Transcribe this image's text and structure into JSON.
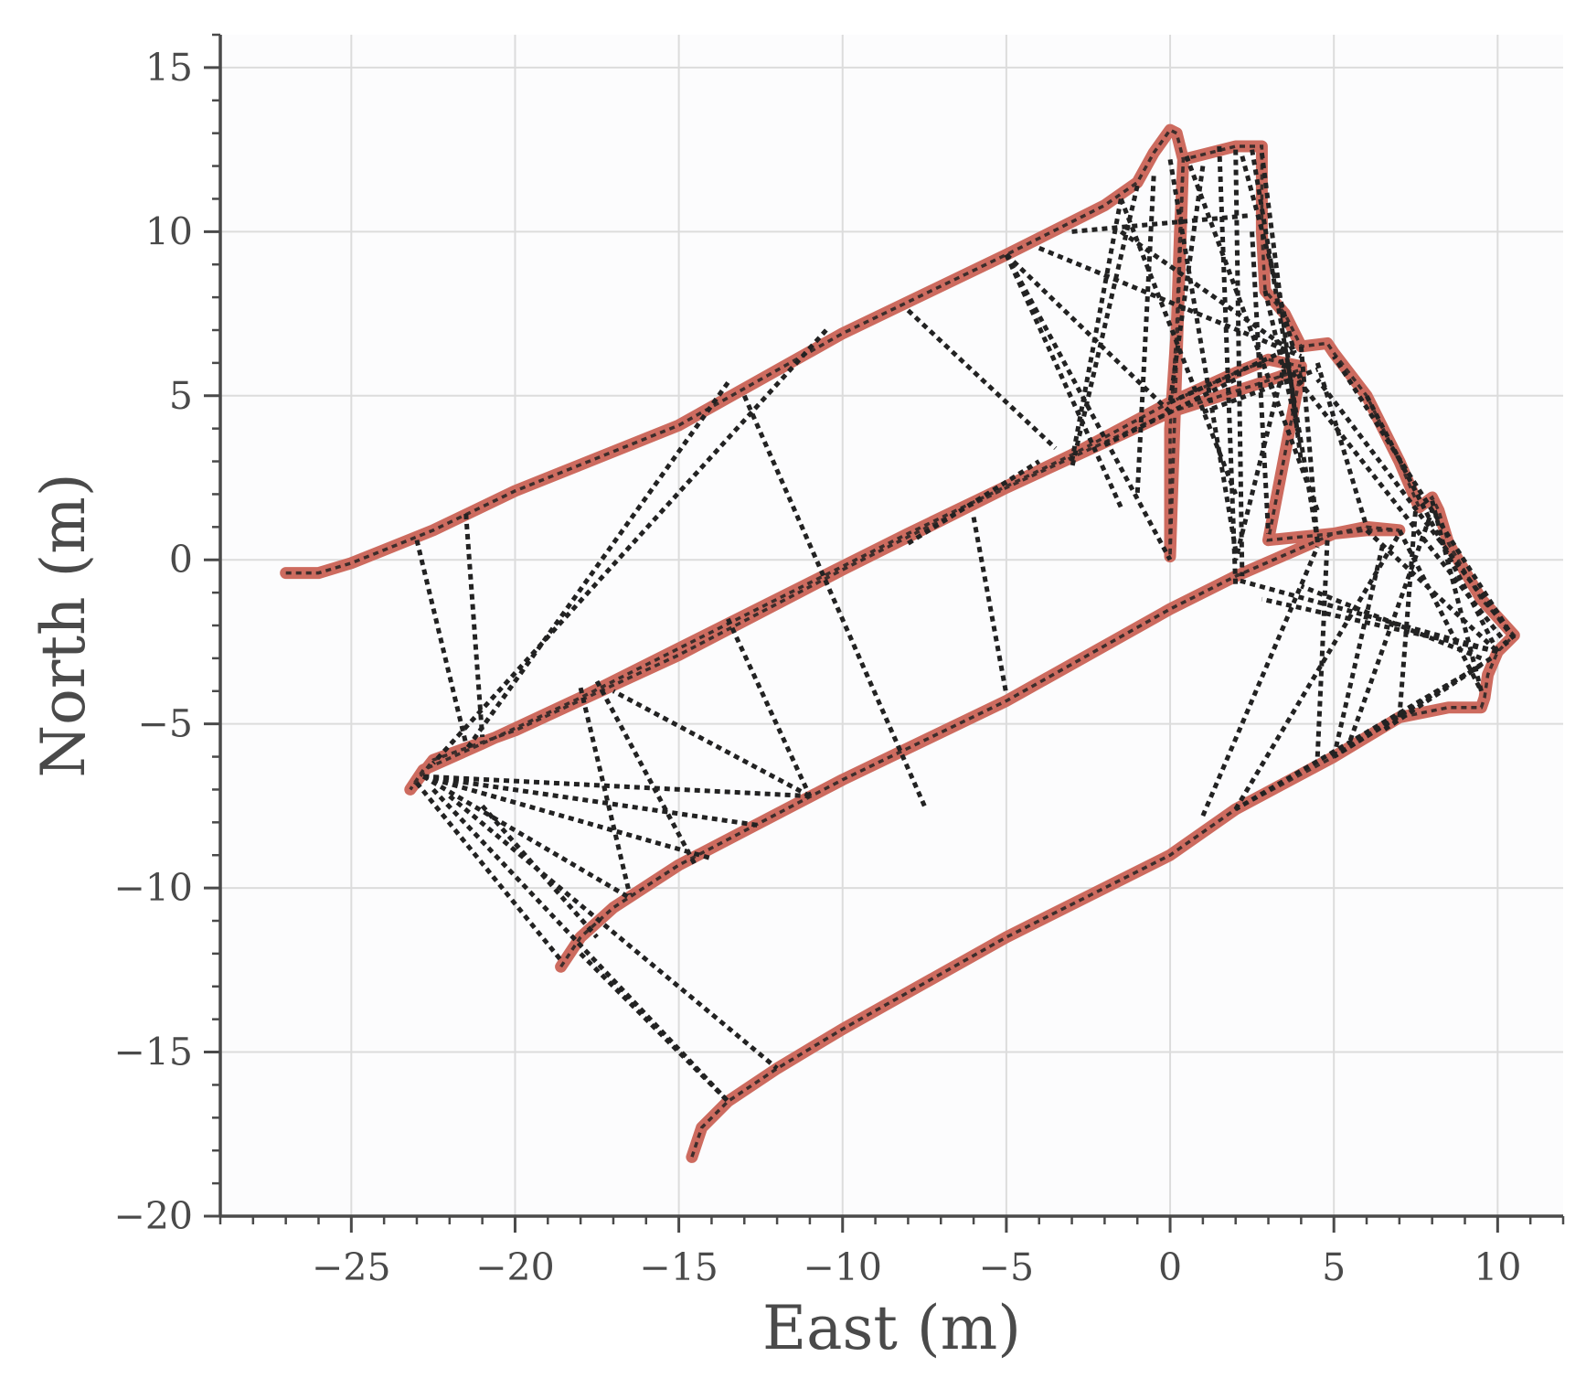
{
  "chart_data": {
    "type": "line",
    "title": "",
    "xlabel": "East (m)",
    "ylabel": "North (m)",
    "xlim": [
      -29,
      12
    ],
    "ylim": [
      -20,
      16
    ],
    "xticks": [
      -25,
      -20,
      -15,
      -10,
      -5,
      0,
      5,
      10
    ],
    "yticks": [
      -20,
      -15,
      -10,
      -5,
      0,
      5,
      10,
      15
    ],
    "xtick_labels": [
      "−25",
      "−20",
      "−15",
      "−10",
      "−5",
      "0",
      "5",
      "10"
    ],
    "ytick_labels": [
      "−20",
      "−15",
      "−10",
      "−5",
      "0",
      "5",
      "10",
      "15"
    ],
    "grid": true,
    "legend": "none",
    "colors": {
      "background": "#fcfcfd",
      "trajectory": "#cd6b5f",
      "connections": "#222222",
      "grid": "#dcdcdc",
      "axis": "#4a4a4a"
    },
    "series": [
      {
        "style": "solid-thick",
        "points": [
          [
            -27.0,
            -0.4
          ],
          [
            -26.0,
            -0.4
          ],
          [
            -25.0,
            -0.1
          ],
          [
            -24.0,
            0.3
          ],
          [
            -22.5,
            0.9
          ],
          [
            -20.0,
            2.1
          ],
          [
            -15.0,
            4.1
          ],
          [
            -10.0,
            6.9
          ],
          [
            -5.0,
            9.3
          ],
          [
            -2.0,
            10.8
          ],
          [
            -1.0,
            11.5
          ],
          [
            -0.5,
            12.4
          ],
          [
            0.0,
            13.1
          ],
          [
            0.2,
            13.0
          ],
          [
            0.4,
            12.2
          ],
          [
            0.3,
            10.0
          ],
          [
            0.2,
            7.0
          ],
          [
            0.0,
            4.0
          ],
          [
            0.0,
            0.1
          ],
          [
            0.4,
            12.2
          ],
          [
            2.0,
            12.6
          ],
          [
            2.8,
            12.6
          ],
          [
            2.8,
            10.0
          ],
          [
            2.9,
            8.2
          ],
          [
            3.5,
            7.5
          ],
          [
            4.0,
            6.5
          ],
          [
            4.8,
            6.6
          ],
          [
            5.0,
            6.3
          ],
          [
            6.0,
            5.0
          ],
          [
            7.0,
            3.0
          ],
          [
            7.6,
            1.6
          ],
          [
            8.0,
            1.9
          ],
          [
            8.2,
            1.5
          ],
          [
            8.5,
            0.5
          ],
          [
            9.5,
            -1.2
          ],
          [
            10.5,
            -2.3
          ],
          [
            10.0,
            -2.8
          ],
          [
            9.7,
            -3.5
          ],
          [
            9.6,
            -4.2
          ],
          [
            9.5,
            -4.5
          ],
          [
            8.5,
            -4.5
          ],
          [
            7.0,
            -4.8
          ],
          [
            5.0,
            -6.0
          ],
          [
            2.0,
            -7.6
          ],
          [
            0.0,
            -9.0
          ],
          [
            -5.0,
            -11.5
          ],
          [
            -10.0,
            -14.3
          ],
          [
            -12.0,
            -15.5
          ],
          [
            -13.5,
            -16.5
          ],
          [
            -14.3,
            -17.3
          ],
          [
            -14.6,
            -18.2
          ]
        ]
      },
      {
        "style": "solid-thick",
        "points": [
          [
            -18.6,
            -12.4
          ],
          [
            -18.0,
            -11.5
          ],
          [
            -17.0,
            -10.6
          ],
          [
            -15.0,
            -9.3
          ],
          [
            -10.0,
            -6.7
          ],
          [
            -5.0,
            -4.3
          ],
          [
            0.0,
            -1.5
          ],
          [
            2.0,
            -0.5
          ],
          [
            5.0,
            0.8
          ],
          [
            6.0,
            1.0
          ],
          [
            7.0,
            0.9
          ],
          [
            6.0,
            0.9
          ],
          [
            3.0,
            0.6
          ],
          [
            4.0,
            5.8
          ],
          [
            2.5,
            5.3
          ],
          [
            0.0,
            4.5
          ],
          [
            -5.0,
            2.2
          ],
          [
            -10.0,
            -0.3
          ],
          [
            -15.0,
            -2.9
          ],
          [
            -20.0,
            -5.2
          ],
          [
            -22.5,
            -6.1
          ],
          [
            -23.2,
            -7.0
          ],
          [
            -22.8,
            -6.4
          ],
          [
            -21.0,
            -5.6
          ],
          [
            -18.0,
            -4.2
          ],
          [
            -13.0,
            -1.7
          ],
          [
            -8.0,
            0.8
          ],
          [
            -3.0,
            3.2
          ],
          [
            0.0,
            4.8
          ],
          [
            2.0,
            5.7
          ],
          [
            3.0,
            6.1
          ],
          [
            4.0,
            5.9
          ]
        ]
      }
    ],
    "connections": [
      [
        [
          -23.0,
          0.6
        ],
        [
          -21.5,
          -5.6
        ]
      ],
      [
        [
          -21.5,
          1.4
        ],
        [
          -21.0,
          -5.4
        ]
      ],
      [
        [
          -13.5,
          5.4
        ],
        [
          -21.5,
          -5.8
        ]
      ],
      [
        [
          -10.5,
          7.0
        ],
        [
          -22.5,
          -6.2
        ]
      ],
      [
        [
          -13.0,
          5.0
        ],
        [
          -7.5,
          -7.5
        ]
      ],
      [
        [
          -8.0,
          7.6
        ],
        [
          -3.5,
          3.4
        ]
      ],
      [
        [
          -3.0,
          3.0
        ],
        [
          -1.5,
          11.0
        ]
      ],
      [
        [
          -5.0,
          9.3
        ],
        [
          0.0,
          0.0
        ]
      ],
      [
        [
          -5.0,
          9.3
        ],
        [
          -1.5,
          1.6
        ]
      ],
      [
        [
          -5.0,
          9.3
        ],
        [
          0.0,
          4.5
        ]
      ],
      [
        [
          -4.0,
          9.5
        ],
        [
          4.0,
          6.2
        ]
      ],
      [
        [
          -3.0,
          10.0
        ],
        [
          2.5,
          10.5
        ]
      ],
      [
        [
          -1.5,
          11.0
        ],
        [
          2.0,
          2.0
        ]
      ],
      [
        [
          -1.0,
          11.4
        ],
        [
          -3.0,
          2.8
        ]
      ],
      [
        [
          -0.5,
          11.7
        ],
        [
          -1.0,
          2.0
        ]
      ],
      [
        [
          0.0,
          12.2
        ],
        [
          2.0,
          0.3
        ]
      ],
      [
        [
          0.5,
          12.3
        ],
        [
          4.5,
          1.5
        ]
      ],
      [
        [
          1.5,
          12.6
        ],
        [
          2.0,
          -0.8
        ]
      ],
      [
        [
          2.0,
          12.5
        ],
        [
          2.2,
          -0.5
        ]
      ],
      [
        [
          2.5,
          12.5
        ],
        [
          4.5,
          0.6
        ]
      ],
      [
        [
          2.8,
          12.4
        ],
        [
          4.0,
          3.0
        ]
      ],
      [
        [
          1.0,
          12.0
        ],
        [
          0.0,
          4.8
        ]
      ],
      [
        [
          -6.0,
          1.3
        ],
        [
          -5.0,
          -4.1
        ]
      ],
      [
        [
          -8.0,
          0.5
        ],
        [
          -4.0,
          3.0
        ]
      ],
      [
        [
          -13.5,
          -1.8
        ],
        [
          -11.0,
          -7.2
        ]
      ],
      [
        [
          -17.5,
          -3.7
        ],
        [
          -14.5,
          -9.3
        ]
      ],
      [
        [
          -18.0,
          -3.9
        ],
        [
          -16.5,
          -10.2
        ]
      ],
      [
        [
          -22.8,
          -6.6
        ],
        [
          -11.0,
          -7.2
        ]
      ],
      [
        [
          -22.8,
          -6.6
        ],
        [
          -12.5,
          -8.1
        ]
      ],
      [
        [
          -22.8,
          -6.6
        ],
        [
          -14.0,
          -9.1
        ]
      ],
      [
        [
          -22.8,
          -6.6
        ],
        [
          -16.5,
          -10.3
        ]
      ],
      [
        [
          -23.0,
          -6.8
        ],
        [
          -18.6,
          -12.2
        ]
      ],
      [
        [
          -22.5,
          -7.0
        ],
        [
          -13.5,
          -16.5
        ]
      ],
      [
        [
          -22.0,
          -7.2
        ],
        [
          -12.0,
          -15.5
        ]
      ],
      [
        [
          -21.0,
          -7.5
        ],
        [
          -17.5,
          -11.5
        ]
      ],
      [
        [
          -18.0,
          -12.0
        ],
        [
          -13.5,
          -16.5
        ]
      ],
      [
        [
          -11.0,
          -7.2
        ],
        [
          -17.0,
          -4.0
        ]
      ],
      [
        [
          1.0,
          -7.8
        ],
        [
          4.5,
          0.4
        ]
      ],
      [
        [
          2.0,
          -7.6
        ],
        [
          7.0,
          0.8
        ]
      ],
      [
        [
          4.5,
          -6.0
        ],
        [
          4.8,
          0.6
        ]
      ],
      [
        [
          5.0,
          -6.0
        ],
        [
          6.5,
          0.5
        ]
      ],
      [
        [
          5.5,
          -5.5
        ],
        [
          8.0,
          1.5
        ]
      ],
      [
        [
          7.0,
          -4.8
        ],
        [
          7.5,
          1.6
        ]
      ],
      [
        [
          9.5,
          -4.0
        ],
        [
          8.0,
          1.8
        ]
      ],
      [
        [
          10.5,
          -2.4
        ],
        [
          4.5,
          5.5
        ]
      ],
      [
        [
          10.5,
          -2.4
        ],
        [
          5.0,
          6.2
        ]
      ],
      [
        [
          10.3,
          -2.6
        ],
        [
          3.5,
          6.0
        ]
      ],
      [
        [
          10.0,
          -2.8
        ],
        [
          6.0,
          5.0
        ]
      ],
      [
        [
          10.0,
          -2.8
        ],
        [
          2.0,
          -0.6
        ]
      ],
      [
        [
          10.0,
          -2.8
        ],
        [
          2.8,
          -1.2
        ]
      ],
      [
        [
          9.8,
          -3.0
        ],
        [
          5.0,
          -6.0
        ]
      ],
      [
        [
          9.5,
          -3.2
        ],
        [
          6.5,
          -5.2
        ]
      ],
      [
        [
          9.0,
          -3.5
        ],
        [
          2.0,
          -7.6
        ]
      ],
      [
        [
          9.5,
          -3.0
        ],
        [
          4.0,
          -0.8
        ]
      ],
      [
        [
          6.0,
          0.9
        ],
        [
          10.0,
          -2.8
        ]
      ],
      [
        [
          7.0,
          0.9
        ],
        [
          9.5,
          -4.0
        ]
      ],
      [
        [
          4.0,
          6.5
        ],
        [
          4.5,
          0.5
        ]
      ],
      [
        [
          3.5,
          6.0
        ],
        [
          2.0,
          0.0
        ]
      ],
      [
        [
          4.5,
          6.0
        ],
        [
          6.0,
          1.0
        ]
      ],
      [
        [
          2.9,
          8.2
        ],
        [
          4.0,
          3.5
        ]
      ],
      [
        [
          2.5,
          10.0
        ],
        [
          3.0,
          0.8
        ]
      ],
      [
        [
          2.2,
          12.3
        ],
        [
          3.8,
          6.3
        ]
      ],
      [
        [
          -1.5,
          10.0
        ],
        [
          3.5,
          6.5
        ]
      ],
      [
        [
          1.0,
          4.5
        ],
        [
          4.5,
          5.8
        ]
      ],
      [
        [
          0.0,
          4.8
        ],
        [
          3.8,
          6.5
        ]
      ],
      [
        [
          -2.0,
          3.5
        ],
        [
          2.0,
          5.5
        ]
      ]
    ]
  }
}
